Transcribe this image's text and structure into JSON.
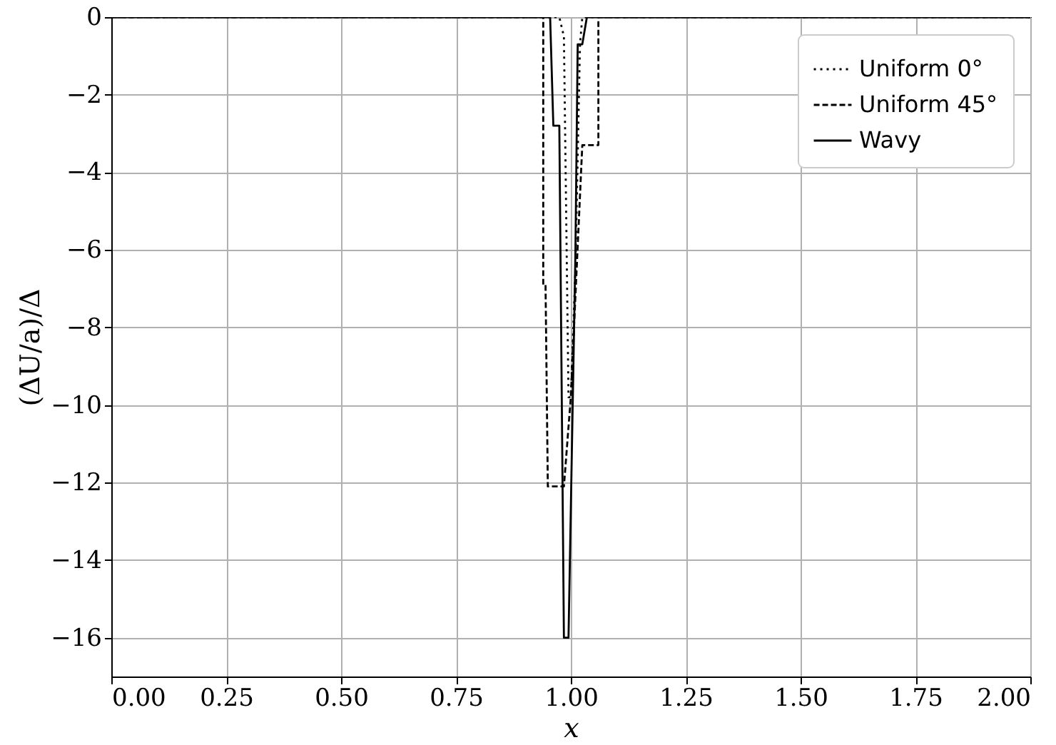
{
  "chart_data": {
    "type": "line",
    "xlabel": "x",
    "ylabel": "(ΔU/a)/Δ",
    "xlim": [
      0,
      2
    ],
    "ylim": [
      -17,
      0
    ],
    "xticks": [
      {
        "value": 0,
        "label": "0.00"
      },
      {
        "value": 0.25,
        "label": "0.25"
      },
      {
        "value": 0.5,
        "label": "0.50"
      },
      {
        "value": 0.75,
        "label": "0.75"
      },
      {
        "value": 1,
        "label": "1.00"
      },
      {
        "value": 1.25,
        "label": "1.25"
      },
      {
        "value": 1.5,
        "label": "1.50"
      },
      {
        "value": 1.75,
        "label": "1.75"
      },
      {
        "value": 2,
        "label": "2.00"
      }
    ],
    "yticks": [
      -16,
      -14,
      -12,
      -10,
      -8,
      -6,
      -4,
      -2,
      0
    ],
    "grid": true,
    "legend": "top right",
    "series": [
      {
        "name": "Uniform 0°",
        "color": "#000000",
        "line_style": "dotted",
        "x": [
          0,
          0.975,
          0.985,
          0.995,
          1.0,
          1.01,
          1.02,
          1.025,
          2
        ],
        "values": [
          0,
          0,
          -0.5,
          -9.8,
          -9.8,
          -6.5,
          -0.7,
          0,
          0
        ]
      },
      {
        "name": "Uniform 45°",
        "color": "#000000",
        "line_style": "dashed",
        "x": [
          0,
          0.94,
          0.94,
          0.945,
          0.95,
          0.985,
          1.0,
          1.025,
          1.06,
          1.06,
          2
        ],
        "values": [
          0,
          0,
          -6.9,
          -6.9,
          -12.1,
          -12.1,
          -9.8,
          -3.3,
          -3.3,
          0,
          0
        ]
      },
      {
        "name": "Wavy",
        "color": "#000000",
        "line_style": "solid",
        "x": [
          0,
          0.955,
          0.962,
          0.975,
          0.985,
          0.995,
          1.01,
          1.015,
          1.025,
          1.035,
          2
        ],
        "values": [
          0,
          0,
          -2.8,
          -2.8,
          -16,
          -16,
          -6.1,
          -0.7,
          -0.7,
          0,
          0
        ]
      }
    ]
  }
}
